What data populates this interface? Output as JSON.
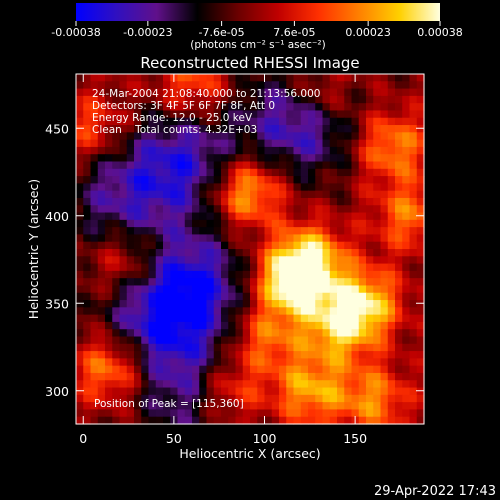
{
  "colorbar": {
    "tick_labels": [
      "-0.00038",
      "-0.00023",
      "-7.6e-05",
      "7.6e-05",
      "0.00023",
      "0.00038"
    ],
    "units_label": "(photons cm⁻² s⁻¹ asec⁻²)",
    "range": [
      -0.00038,
      0.00038
    ],
    "colors": [
      "#0000ff",
      "#3010c0",
      "#60108a",
      "#000000",
      "#6a0000",
      "#c00000",
      "#ff3000",
      "#ff8000",
      "#ffd000",
      "#ffffe0"
    ]
  },
  "chart_data": {
    "type": "heatmap",
    "title": "Reconstructed RHESSI Image",
    "xlabel": "Heliocentric X (arcsec)",
    "ylabel": "Heliocentric Y (arcsec)",
    "x_ticks": [
      0,
      50,
      100,
      150
    ],
    "y_ticks": [
      300,
      350,
      400,
      450
    ],
    "xlim": [
      -4,
      188
    ],
    "ylim": [
      281,
      481
    ],
    "peak": [
      115,
      360
    ],
    "blobs": [
      {
        "x": 115,
        "y": 362,
        "amp": 1.0
      },
      {
        "x": 125,
        "y": 375,
        "amp": 0.8
      },
      {
        "x": 155,
        "y": 350,
        "amp": 0.85
      },
      {
        "x": 140,
        "y": 335,
        "amp": 0.7
      },
      {
        "x": 90,
        "y": 414,
        "amp": 0.85
      },
      {
        "x": 100,
        "y": 330,
        "amp": 0.55
      },
      {
        "x": 80,
        "y": 300,
        "amp": 0.6
      },
      {
        "x": 15,
        "y": 313,
        "amp": 0.7
      },
      {
        "x": 25,
        "y": 373,
        "amp": 0.5
      },
      {
        "x": 170,
        "y": 440,
        "amp": 0.65
      },
      {
        "x": 125,
        "y": 300,
        "amp": 0.7
      },
      {
        "x": 160,
        "y": 295,
        "amp": 0.6
      },
      {
        "x": 130,
        "y": 470,
        "amp": 0.55
      },
      {
        "x": 60,
        "y": 475,
        "amp": 0.5
      },
      {
        "x": 180,
        "y": 400,
        "amp": 0.55
      },
      {
        "x": 5,
        "y": 450,
        "amp": 0.45
      }
    ],
    "troughs": [
      {
        "x": 55,
        "y": 430,
        "amp": 0.7
      },
      {
        "x": 60,
        "y": 360,
        "amp": 0.75
      },
      {
        "x": 40,
        "y": 340,
        "amp": 0.6
      },
      {
        "x": 120,
        "y": 455,
        "amp": 0.8
      },
      {
        "x": 20,
        "y": 410,
        "amp": 0.5
      },
      {
        "x": 60,
        "y": 300,
        "amp": 0.55
      }
    ]
  },
  "annotations": {
    "line1": "24-Mar-2004 21:08:40.000 to 21:13:56.000",
    "line2": "Detectors: 3F 4F 5F 6F 7F 8F, Att 0",
    "line3": "Energy Range: 12.0 - 25.0 keV",
    "line4": "Clean    Total counts: 4.32E+03",
    "peak_label": "Position of Peak = [115,360]"
  },
  "timestamp": "29-Apr-2022 17:43"
}
